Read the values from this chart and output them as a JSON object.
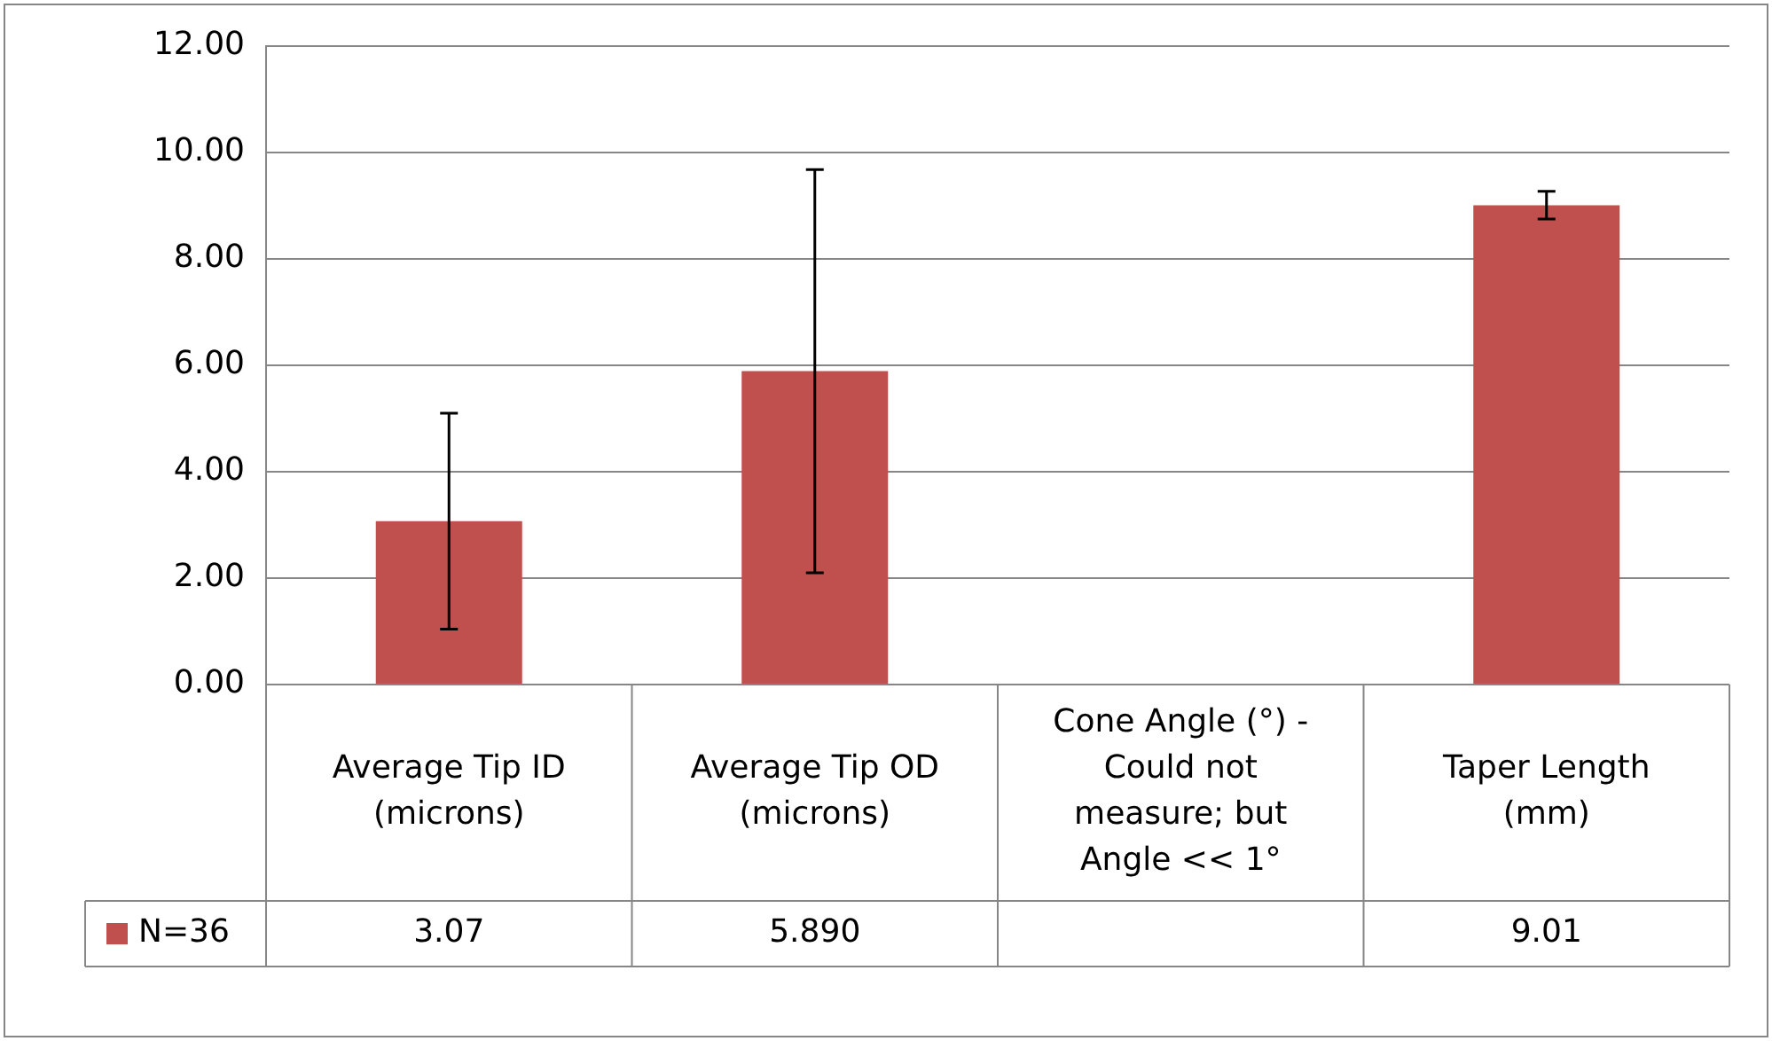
{
  "chart_data": {
    "type": "bar",
    "categories": [
      "Average Tip ID (microns)",
      "Average Tip OD (microns)",
      "Cone Angle (°) - Could not measure; but Angle << 1°",
      "Taper Length (mm)"
    ],
    "series": [
      {
        "name": "N=36",
        "color": "#c0504d",
        "values": [
          3.07,
          5.89,
          null,
          9.01
        ],
        "errors": [
          2.03,
          3.79,
          null,
          0.26
        ],
        "value_labels": [
          "3.07",
          "5.890",
          null,
          "9.01"
        ]
      }
    ],
    "ylim": [
      0,
      12
    ],
    "yticks": [
      {
        "value": 0,
        "label": "0.00"
      },
      {
        "value": 2,
        "label": "2.00"
      },
      {
        "value": 4,
        "label": "4.00"
      },
      {
        "value": 6,
        "label": "6.00"
      },
      {
        "value": 8,
        "label": "8.00"
      },
      {
        "value": 10,
        "label": "10.00"
      },
      {
        "value": 12,
        "label": "12.00"
      }
    ],
    "grid": "y",
    "legend": "bottom left"
  }
}
